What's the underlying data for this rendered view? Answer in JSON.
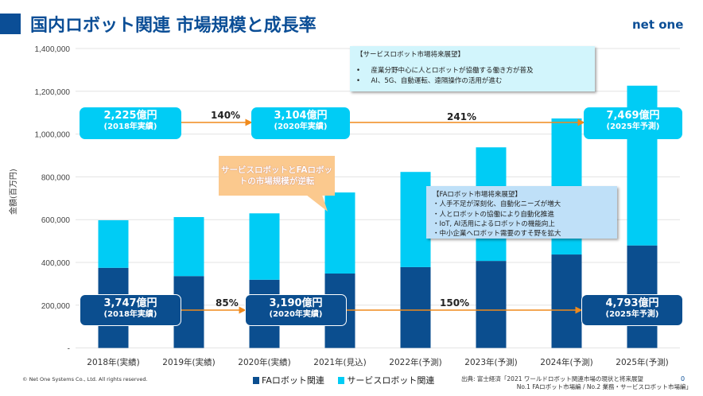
{
  "header": {
    "title": "国内ロボット関連 市場規模と成長率",
    "logo": "net one"
  },
  "chart_data": {
    "type": "bar",
    "stacked": true,
    "ylabel": "金額(百万円)",
    "ylim": [
      0,
      1400000
    ],
    "yticks": [
      "-",
      "200,000",
      "400,000",
      "600,000",
      "800,000",
      "1,000,000",
      "1,200,000",
      "1,400,000"
    ],
    "grid": true,
    "categories": [
      "2018年(実績)",
      "2019年(実績)",
      "2020年(実績)",
      "2021年(見込)",
      "2022年(予測)",
      "2023年(予測)",
      "2024年(予測)",
      "2025年(予測)"
    ],
    "series": [
      {
        "name": "FAロボット関連",
        "color": "#0b4e8f",
        "values": [
          374700,
          336000,
          319000,
          348000,
          378000,
          407000,
          437000,
          479300
        ]
      },
      {
        "name": "サービスロボット関連",
        "color": "#00ccf5",
        "values": [
          222500,
          276000,
          310400,
          379000,
          445000,
          531000,
          636000,
          746900
        ]
      }
    ],
    "legend": "bottom"
  },
  "callouts": {
    "svc": [
      {
        "value": "2,225億円",
        "sub": "(2018年実績)"
      },
      {
        "value": "3,104億円",
        "sub": "(2020年実績)"
      },
      {
        "value": "7,469億円",
        "sub": "(2025年予測)"
      }
    ],
    "svc_growth": [
      "140%",
      "241%"
    ],
    "fa": [
      {
        "value": "3,747億円",
        "sub": "(2018年実績)"
      },
      {
        "value": "3,190億円",
        "sub": "(2020年実績)"
      },
      {
        "value": "4,793億円",
        "sub": "(2025年予測)"
      }
    ],
    "fa_growth": [
      "85%",
      "150%"
    ],
    "bubble": "サービスロボットとFAロボットの市場規模が逆転"
  },
  "svc_outlook": {
    "title": "【サービスロボット市場将来展望】",
    "items": [
      "産業分野中心に人とロボットが協働する働き方が普及",
      "AI、5G、自動運転、遠隔操作の活用が進む"
    ]
  },
  "fa_outlook": {
    "title": "【FAロボット市場将来展望】",
    "items": [
      "人手不足が深刻化、自動化ニーズが増大",
      "人とロボットの協働により自動化推進",
      "IoT, AI活用によるロボットの機能向上",
      "中小企業へロボット需要のすそ野を拡大"
    ]
  },
  "footer": {
    "copyright": "© Net One Systems Co., Ltd. All rights reserved.",
    "source_line1": "出典: 富士経済「2021 ワールドロボット関連市場の現状と将来展望",
    "source_line2": "No.1 FAロボット市場編 / No.2 業務・サービスロボット市場編」",
    "page": "0"
  }
}
